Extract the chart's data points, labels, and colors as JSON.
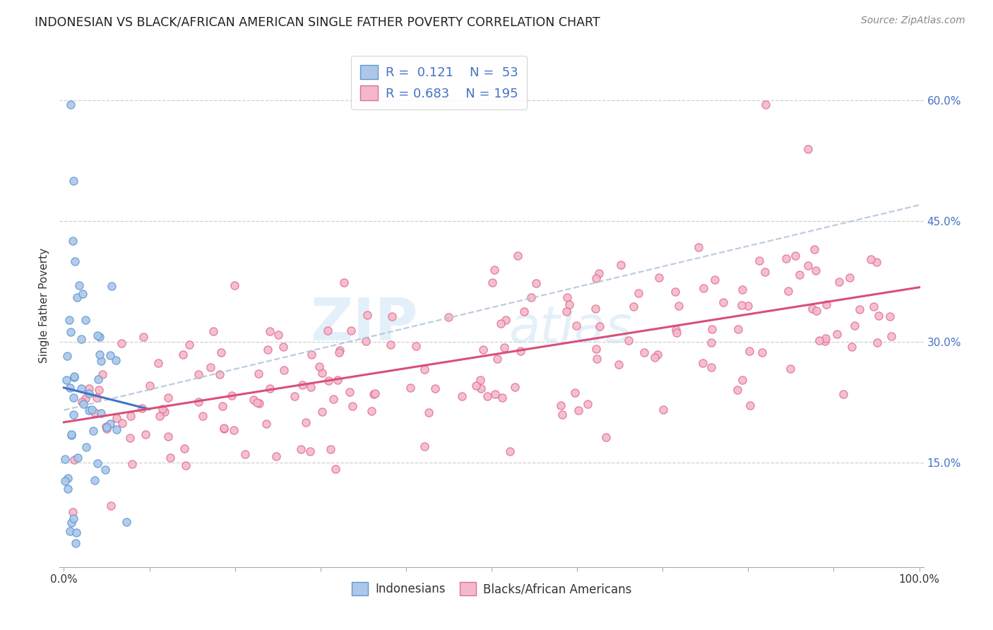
{
  "title": "INDONESIAN VS BLACK/AFRICAN AMERICAN SINGLE FATHER POVERTY CORRELATION CHART",
  "source": "Source: ZipAtlas.com",
  "ylabel": "Single Father Poverty",
  "ytick_vals": [
    0.15,
    0.3,
    0.45,
    0.6
  ],
  "ytick_labels": [
    "15.0%",
    "30.0%",
    "45.0%",
    "60.0%"
  ],
  "watermark_line1": "ZIP",
  "watermark_line2": "atlas",
  "indonesian_fill": "#aec6e8",
  "indonesian_edge": "#5b9bd5",
  "black_fill": "#f4b8cb",
  "black_edge": "#e07090",
  "line_blue": "#4472c4",
  "line_pink": "#d94f7a",
  "line_dashed_color": "#b0c4d8",
  "grid_color": "#d0d0d0",
  "title_color": "#222222",
  "source_color": "#888888",
  "ytick_color": "#4472c4",
  "legend1_label": "R =  0.121    N =  53",
  "legend2_label": "R = 0.683    N = 195",
  "bottom_legend1": "Indonesians",
  "bottom_legend2": "Blacks/African Americans"
}
